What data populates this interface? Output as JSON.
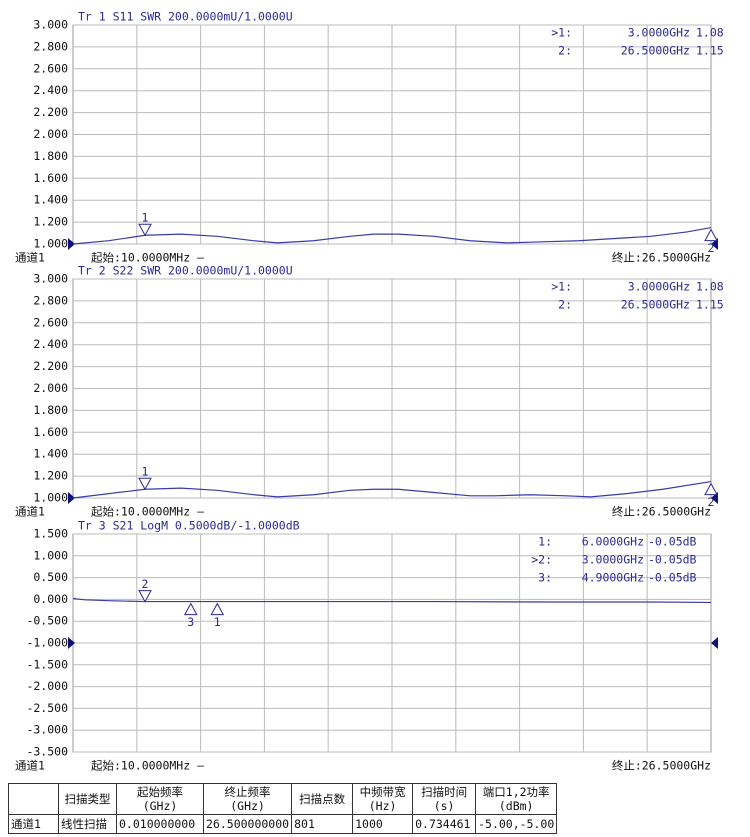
{
  "chart_data": [
    {
      "type": "line",
      "title": "Tr 1  S11 SWR 200.0000mU/1.0000U",
      "channel": "通道1",
      "start_label": "起始:10.0000MHz —",
      "stop_label": "终止:26.5000GHz",
      "xlim": [
        0.01,
        26.5
      ],
      "ylim": [
        1,
        3
      ],
      "yticks": [
        {
          "value": 3,
          "label": "3.000"
        },
        {
          "value": 2.8,
          "label": "2.800"
        },
        {
          "value": 2.6,
          "label": "2.600"
        },
        {
          "value": 2.4,
          "label": "2.400"
        },
        {
          "value": 2.2,
          "label": "2.200"
        },
        {
          "value": 2,
          "label": "2.000"
        },
        {
          "value": 1.8,
          "label": "1.800"
        },
        {
          "value": 1.6,
          "label": "1.600"
        },
        {
          "value": 1.4,
          "label": "1.400"
        },
        {
          "value": 1.2,
          "label": "1.200"
        },
        {
          "value": 1,
          "label": "1.000"
        }
      ],
      "ref_level": 1,
      "grid": true,
      "series": [
        {
          "color": "#3a3aa8",
          "x": [
            0.01,
            1.5,
            3,
            4.5,
            6,
            7.5,
            8.5,
            10,
            11.5,
            12.5,
            13.5,
            15,
            16.5,
            18,
            19.5,
            21,
            22.5,
            24,
            25.5,
            26.5
          ],
          "values": [
            1.0,
            1.03,
            1.08,
            1.09,
            1.07,
            1.03,
            1.01,
            1.03,
            1.07,
            1.09,
            1.09,
            1.07,
            1.03,
            1.01,
            1.02,
            1.03,
            1.05,
            1.07,
            1.11,
            1.15
          ]
        }
      ],
      "markers": [
        {
          "tag": ">1:",
          "marker_label": "1",
          "x": 3,
          "x_label": "3.0000GHz",
          "y": 1.08,
          "y_label": "1.08"
        },
        {
          "tag": "2:",
          "marker_label": "2",
          "x": 26.5,
          "x_label": "26.5000GHz",
          "y": 1.15,
          "y_label": "1.15"
        }
      ]
    },
    {
      "type": "line",
      "title": "Tr 2  S22 SWR 200.0000mU/1.0000U",
      "channel": "通道1",
      "start_label": "起始:10.0000MHz —",
      "stop_label": "终止:26.5000GHz",
      "xlim": [
        0.01,
        26.5
      ],
      "ylim": [
        1,
        3
      ],
      "yticks": [
        {
          "value": 3,
          "label": "3.000"
        },
        {
          "value": 2.8,
          "label": "2.800"
        },
        {
          "value": 2.6,
          "label": "2.600"
        },
        {
          "value": 2.4,
          "label": "2.400"
        },
        {
          "value": 2.2,
          "label": "2.200"
        },
        {
          "value": 2,
          "label": "2.000"
        },
        {
          "value": 1.8,
          "label": "1.800"
        },
        {
          "value": 1.6,
          "label": "1.600"
        },
        {
          "value": 1.4,
          "label": "1.400"
        },
        {
          "value": 1.2,
          "label": "1.200"
        },
        {
          "value": 1,
          "label": "1.000"
        }
      ],
      "ref_level": 1,
      "grid": true,
      "series": [
        {
          "color": "#3a3aa8",
          "x": [
            0.01,
            1.5,
            3,
            4.5,
            6,
            7.5,
            8.5,
            10,
            11.5,
            12.5,
            13.5,
            15,
            16.5,
            17.5,
            19,
            20.5,
            21.5,
            23,
            24.5,
            26.5
          ],
          "values": [
            1.0,
            1.04,
            1.08,
            1.09,
            1.07,
            1.03,
            1.01,
            1.03,
            1.07,
            1.08,
            1.08,
            1.05,
            1.02,
            1.02,
            1.03,
            1.02,
            1.01,
            1.04,
            1.08,
            1.15
          ]
        }
      ],
      "markers": [
        {
          "tag": ">1:",
          "marker_label": "1",
          "x": 3,
          "x_label": "3.0000GHz",
          "y": 1.08,
          "y_label": "1.08"
        },
        {
          "tag": "2:",
          "marker_label": "2",
          "x": 26.5,
          "x_label": "26.5000GHz",
          "y": 1.15,
          "y_label": "1.15"
        }
      ]
    },
    {
      "type": "line",
      "title": "Tr 3  S21 LogM 0.5000dB/-1.0000dB",
      "channel": "通道1",
      "start_label": "起始:10.0000MHz —",
      "stop_label": "终止:26.5000GHz",
      "xlim": [
        0.01,
        26.5
      ],
      "ylim": [
        -3.5,
        1.5
      ],
      "yticks": [
        {
          "value": 1.5,
          "label": "1.500"
        },
        {
          "value": 1,
          "label": "1.000"
        },
        {
          "value": 0.5,
          "label": "0.500"
        },
        {
          "value": 0,
          "label": "0.000"
        },
        {
          "value": -0.5,
          "label": "-0.500"
        },
        {
          "value": -1,
          "label": "-1.000"
        },
        {
          "value": -1.5,
          "label": "-1.500"
        },
        {
          "value": -2,
          "label": "-2.000"
        },
        {
          "value": -2.5,
          "label": "-2.500"
        },
        {
          "value": -3,
          "label": "-3.000"
        },
        {
          "value": -3.5,
          "label": "-3.500"
        }
      ],
      "ref_level": -1,
      "grid": true,
      "series": [
        {
          "color": "#3a3aa8",
          "x": [
            0.01,
            0.5,
            1.5,
            3,
            6,
            10,
            15,
            20,
            24,
            26.5
          ],
          "values": [
            0.02,
            -0.01,
            -0.03,
            -0.05,
            -0.05,
            -0.05,
            -0.05,
            -0.06,
            -0.06,
            -0.07
          ]
        }
      ],
      "markers": [
        {
          "tag": "1:",
          "marker_label": "1",
          "x": 6,
          "x_label": "6.0000GHz",
          "y": -0.05,
          "y_label": "-0.05dB"
        },
        {
          "tag": ">2:",
          "marker_label": "2",
          "x": 3,
          "x_label": "3.0000GHz",
          "y": -0.05,
          "y_label": "-0.05dB"
        },
        {
          "tag": "3:",
          "marker_label": "3",
          "x": 4.9,
          "x_label": "4.9000GHz",
          "y": -0.05,
          "y_label": "-0.05dB"
        }
      ]
    }
  ],
  "table": {
    "header": [
      [
        "扫描类型"
      ],
      [
        "起始频率",
        "(GHz)"
      ],
      [
        "终止频率",
        "(GHz)"
      ],
      [
        "扫描点数"
      ],
      [
        "中频带宽",
        "(Hz)"
      ],
      [
        "扫描时间",
        "(s)"
      ],
      [
        "端口1,2功率",
        "(dBm)"
      ]
    ],
    "rows": [
      [
        "通道1",
        "线性扫描",
        "0.010000000",
        "26.500000000",
        "801",
        "1000",
        "0.734461",
        "-5.00,-5.00"
      ]
    ]
  }
}
